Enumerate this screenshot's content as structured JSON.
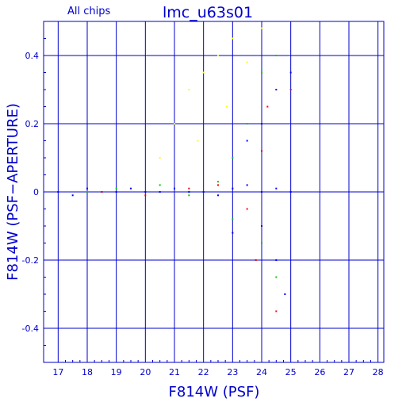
{
  "chart_data": {
    "type": "scatter",
    "title": "lmc_u63s01",
    "subtitle": "All chips",
    "xlabel": "F814W (PSF)",
    "ylabel": "F814W (PSF−APERTURE)",
    "xlim": [
      16.5,
      28.2
    ],
    "ylim": [
      -0.5,
      0.5
    ],
    "x_ticks": [
      17,
      18,
      19,
      20,
      21,
      22,
      23,
      24,
      25,
      26,
      27,
      28
    ],
    "y_ticks": [
      -0.4,
      -0.2,
      0,
      0.2,
      0.4
    ],
    "grid": true,
    "series": [
      {
        "color": "#0000ff",
        "points": [
          [
            17.0,
            0.0
          ],
          [
            17.5,
            -0.01
          ],
          [
            18.0,
            0.01
          ],
          [
            18.5,
            0.0
          ],
          [
            19.0,
            0.0
          ],
          [
            19.5,
            0.01
          ],
          [
            20.0,
            0.0
          ],
          [
            20.5,
            0.0
          ],
          [
            21.0,
            0.01
          ],
          [
            21.5,
            0.0
          ],
          [
            22.0,
            0.0
          ],
          [
            22.5,
            -0.01
          ],
          [
            23.0,
            0.01
          ],
          [
            23.5,
            0.02
          ],
          [
            24.0,
            0.0
          ],
          [
            24.5,
            0.01
          ],
          [
            25.0,
            0.0
          ],
          [
            23.5,
            0.15
          ],
          [
            24.0,
            0.2
          ],
          [
            24.5,
            0.3
          ],
          [
            24.5,
            -0.2
          ],
          [
            24.8,
            -0.3
          ],
          [
            25.0,
            0.35
          ],
          [
            24.0,
            -0.1
          ],
          [
            23.0,
            -0.12
          ]
        ]
      },
      {
        "color": "#00cc00",
        "points": [
          [
            18.0,
            0.0
          ],
          [
            19.0,
            0.01
          ],
          [
            20.5,
            0.02
          ],
          [
            21.5,
            -0.01
          ],
          [
            22.5,
            0.03
          ],
          [
            23.0,
            0.1
          ],
          [
            23.5,
            0.2
          ],
          [
            24.0,
            0.35
          ],
          [
            24.5,
            0.4
          ],
          [
            24.0,
            -0.15
          ],
          [
            24.5,
            -0.25
          ],
          [
            23.0,
            -0.08
          ]
        ]
      },
      {
        "color": "#ffff00",
        "points": [
          [
            20.5,
            0.1
          ],
          [
            21.0,
            0.2
          ],
          [
            21.5,
            0.3
          ],
          [
            22.0,
            0.35
          ],
          [
            22.5,
            0.4
          ],
          [
            23.0,
            0.45
          ],
          [
            21.8,
            0.15
          ],
          [
            22.8,
            0.25
          ],
          [
            23.5,
            0.38
          ],
          [
            24.0,
            0.48
          ]
        ]
      },
      {
        "color": "#ff0000",
        "points": [
          [
            18.5,
            0.0
          ],
          [
            20.0,
            -0.01
          ],
          [
            21.5,
            0.01
          ],
          [
            22.5,
            0.02
          ],
          [
            23.5,
            -0.05
          ],
          [
            24.0,
            0.12
          ],
          [
            24.5,
            -0.35
          ],
          [
            25.0,
            0.3
          ],
          [
            24.2,
            0.25
          ],
          [
            23.8,
            -0.2
          ]
        ]
      }
    ]
  }
}
